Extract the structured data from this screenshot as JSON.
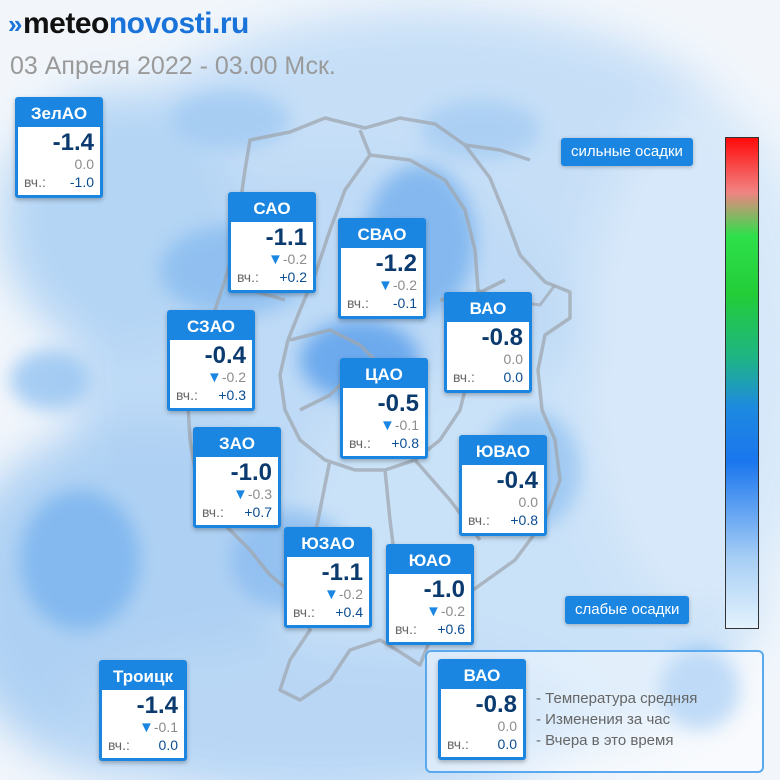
{
  "header": {
    "logo_text_1": "meteo",
    "logo_text_2": "novosti.ru",
    "subtitle": "03 Апреля 2022 - 03.00 Мск."
  },
  "labels": {
    "yesterday_short": "вч.:"
  },
  "districts": [
    {
      "name": "ЗелАО",
      "temp": "-1.4",
      "change": "0.0",
      "change_arrow": false,
      "yesterday": "-1.0"
    },
    {
      "name": "САО",
      "temp": "-1.1",
      "change": "-0.2",
      "change_arrow": true,
      "yesterday": "+0.2"
    },
    {
      "name": "СВАО",
      "temp": "-1.2",
      "change": "-0.2",
      "change_arrow": true,
      "yesterday": "-0.1"
    },
    {
      "name": "ВАО",
      "temp": "-0.8",
      "change": "0.0",
      "change_arrow": false,
      "yesterday": "0.0"
    },
    {
      "name": "СЗАО",
      "temp": "-0.4",
      "change": "-0.2",
      "change_arrow": true,
      "yesterday": "+0.3"
    },
    {
      "name": "ЦАО",
      "temp": "-0.5",
      "change": "-0.1",
      "change_arrow": true,
      "yesterday": "+0.8"
    },
    {
      "name": "ЗАО",
      "temp": "-1.0",
      "change": "-0.3",
      "change_arrow": true,
      "yesterday": "+0.7"
    },
    {
      "name": "ЮВАО",
      "temp": "-0.4",
      "change": "0.0",
      "change_arrow": false,
      "yesterday": "+0.8"
    },
    {
      "name": "ЮЗАО",
      "temp": "-1.1",
      "change": "-0.2",
      "change_arrow": true,
      "yesterday": "+0.4"
    },
    {
      "name": "ЮАО",
      "temp": "-1.0",
      "change": "-0.2",
      "change_arrow": true,
      "yesterday": "+0.6"
    },
    {
      "name": "Троицк",
      "temp": "-1.4",
      "change": "-0.1",
      "change_arrow": true,
      "yesterday": "0.0"
    }
  ],
  "precip_scale": {
    "top_label": "сильные осадки",
    "bottom_label": "слабые осадки"
  },
  "legend": {
    "sample": {
      "name": "ВАО",
      "temp": "-0.8",
      "change": "0.0",
      "yesterday": "0.0"
    },
    "items": [
      "- Температура средняя",
      "- Изменения за час",
      "- Вчера в это время"
    ]
  },
  "colors": {
    "accent": "#1a86e2",
    "logo_blue": "#1a73d9",
    "temp_text": "#0a3a6e",
    "scale_top": "#ff0a0a",
    "scale_green": "#22cd38",
    "scale_blue": "#1a76ee",
    "scale_bottom": "#e3f2fd"
  },
  "icons": {
    "change_arrow": "down-triangle-icon",
    "logo_mark": "chevron-mark-icon"
  }
}
